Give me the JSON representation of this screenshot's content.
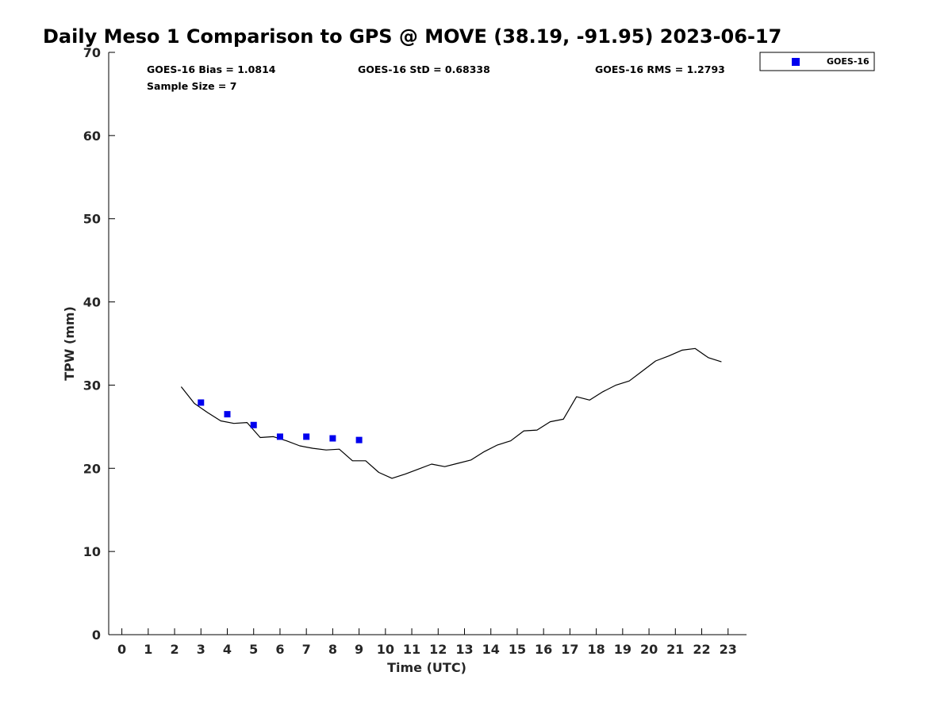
{
  "chart_data": {
    "type": "scatter",
    "title": "Daily Meso 1 Comparison to GPS @ MOVE (38.19, -91.95) 2023-06-17",
    "xlabel": "Time (UTC)",
    "ylabel": "TPW (mm)",
    "xlim": [
      -0.5,
      23.7
    ],
    "ylim": [
      0,
      70
    ],
    "x_ticks": [
      0,
      1,
      2,
      3,
      4,
      5,
      6,
      7,
      8,
      9,
      10,
      11,
      12,
      13,
      14,
      15,
      16,
      17,
      18,
      19,
      20,
      21,
      22,
      23
    ],
    "y_ticks": [
      0,
      10,
      20,
      30,
      40,
      50,
      60,
      70
    ],
    "grid": false,
    "legend_position": "top-right",
    "stats": {
      "bias": "GOES-16 Bias = 1.0814",
      "std": "GOES-16 StD = 0.68338",
      "rms": "GOES-16 RMS = 1.2793",
      "sample_size": "Sample Size = 7"
    },
    "series": [
      {
        "name": "GOES-16",
        "kind": "scatter",
        "marker": "square",
        "color": "#0000ee",
        "x": [
          3,
          4,
          5,
          6,
          7,
          8,
          9
        ],
        "y": [
          27.9,
          26.5,
          25.2,
          23.8,
          23.8,
          23.6,
          23.4
        ]
      },
      {
        "kind": "line",
        "color": "#000000",
        "x": [
          2.25,
          2.75,
          3.25,
          3.75,
          4.25,
          4.75,
          5.25,
          5.75,
          6.25,
          6.75,
          7.25,
          7.75,
          8.25,
          8.75,
          9.25,
          9.75,
          10.25,
          10.75,
          11.25,
          11.75,
          12.25,
          12.75,
          13.25,
          13.75,
          14.25,
          14.75,
          15.25,
          15.75,
          16.25,
          16.75,
          17.25,
          17.75,
          18.25,
          18.75,
          19.25,
          19.75,
          20.25,
          20.75,
          21.25,
          21.75,
          22.25,
          22.75
        ],
        "y": [
          29.8,
          27.8,
          26.7,
          25.7,
          25.4,
          25.5,
          23.7,
          23.8,
          23.3,
          22.7,
          22.4,
          22.2,
          22.3,
          20.9,
          20.9,
          19.5,
          18.8,
          19.3,
          19.9,
          20.5,
          20.2,
          20.6,
          21.0,
          22.0,
          22.8,
          23.3,
          24.5,
          24.6,
          25.6,
          25.9,
          28.6,
          28.2,
          29.2,
          30.0,
          30.5,
          31.7,
          32.9,
          33.5,
          34.2,
          34.4,
          33.3,
          32.8
        ]
      }
    ]
  }
}
